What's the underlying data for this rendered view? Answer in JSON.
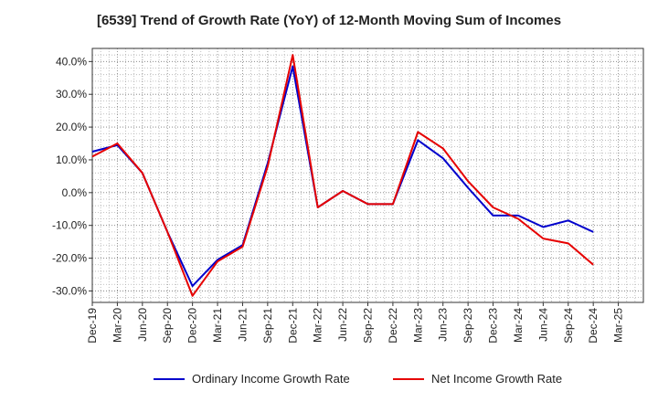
{
  "chart_data": {
    "type": "line",
    "title": "[6539]  Trend of Growth Rate (YoY) of 12-Month Moving Sum of Incomes",
    "xlabel": "",
    "ylabel": "",
    "ylim": [
      -33.5,
      44.0
    ],
    "yticks": [
      40,
      30,
      20,
      10,
      0,
      -10,
      -20,
      -30
    ],
    "ytick_labels": [
      "40.0%",
      "30.0%",
      "20.0%",
      "10.0%",
      "0.0%",
      "-10.0%",
      "-20.0%",
      "-30.0%"
    ],
    "grid": true,
    "legend_position": "bottom",
    "categories": [
      "Dec-19",
      "Mar-20",
      "Jun-20",
      "Sep-20",
      "Dec-20",
      "Mar-21",
      "Jun-21",
      "Sep-21",
      "Dec-21",
      "Mar-22",
      "Jun-22",
      "Sep-22",
      "Dec-22",
      "Mar-23",
      "Jun-23",
      "Sep-23",
      "Dec-23",
      "Mar-24",
      "Jun-24",
      "Sep-24",
      "Dec-24",
      "Mar-25"
    ],
    "series": [
      {
        "name": "Ordinary Income Growth Rate",
        "color": "#0000cc",
        "values": [
          12.5,
          14.5,
          6.0,
          -12.0,
          -28.5,
          -20.5,
          -16.0,
          9.0,
          38.5,
          -4.5,
          0.5,
          -3.5,
          -3.5,
          16.0,
          10.5,
          1.5,
          -7.0,
          -7.0,
          -10.5,
          -8.5,
          -12.0,
          null
        ]
      },
      {
        "name": "Net Income Growth Rate",
        "color": "#e60000",
        "values": [
          11.0,
          15.0,
          6.0,
          -12.0,
          -31.5,
          -21.0,
          -16.5,
          8.0,
          42.0,
          -4.5,
          0.5,
          -3.5,
          -3.5,
          18.5,
          13.5,
          3.5,
          -4.5,
          -8.0,
          -14.0,
          -15.5,
          -22.0,
          null
        ]
      }
    ]
  }
}
